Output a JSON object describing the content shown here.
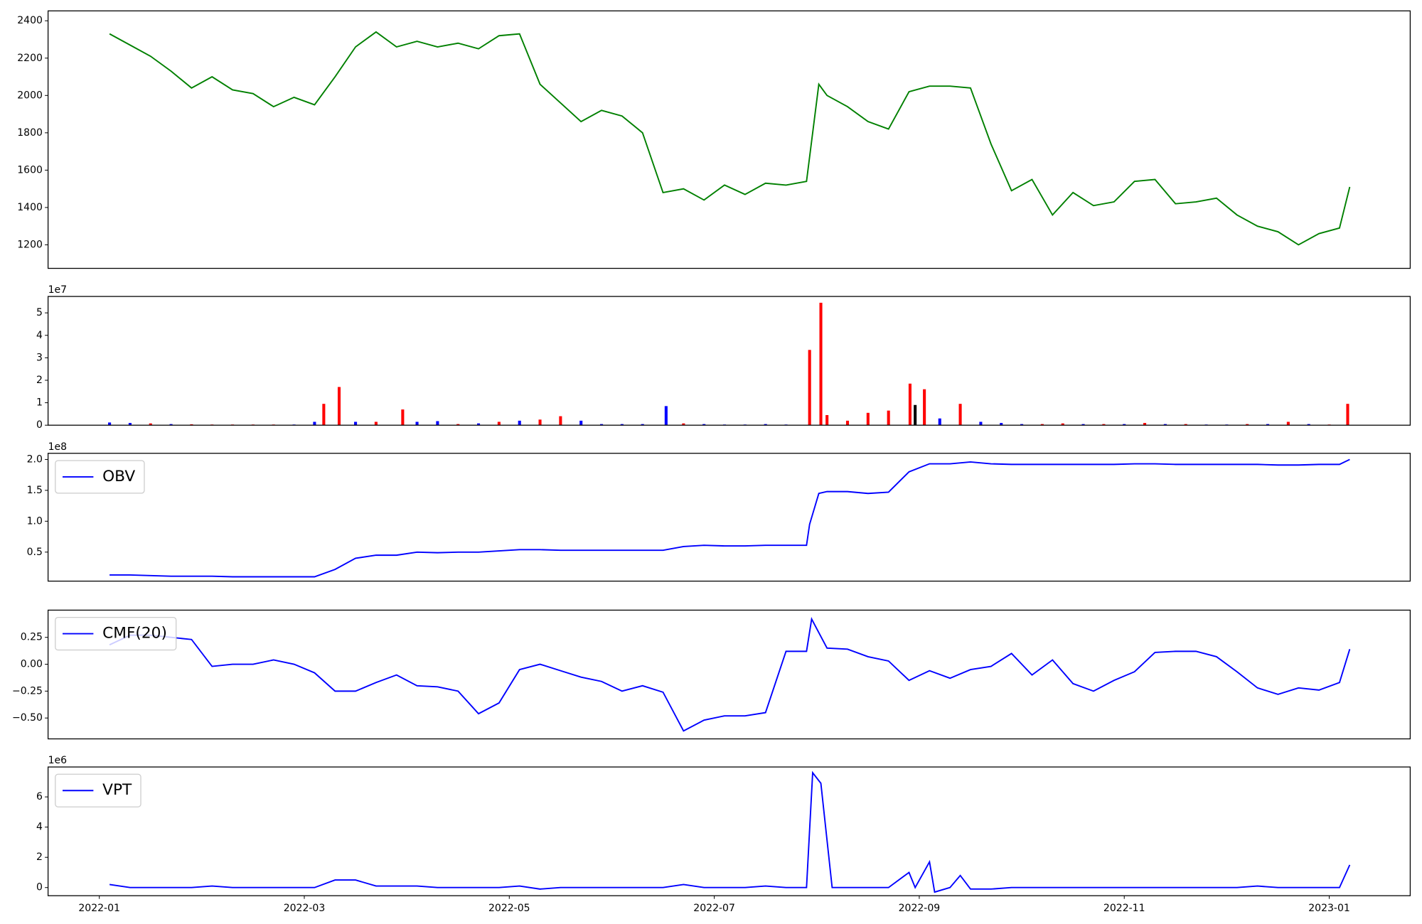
{
  "chart_data": [
    {
      "type": "line",
      "color": "green",
      "x": [
        0.1,
        0.3,
        0.5,
        0.7,
        0.9,
        1.1,
        1.3,
        1.5,
        1.7,
        1.9,
        2.1,
        2.3,
        2.5,
        2.7,
        2.9,
        3.1,
        3.3,
        3.5,
        3.7,
        3.9,
        4.1,
        4.3,
        4.5,
        4.7,
        4.9,
        5.1,
        5.3,
        5.5,
        5.7,
        5.9,
        6.1,
        6.3,
        6.5,
        6.7,
        6.9,
        7.02,
        7.1,
        7.3,
        7.5,
        7.7,
        7.9,
        8.1,
        8.3,
        8.5,
        8.7,
        8.9,
        9.1,
        9.3,
        9.5,
        9.7,
        9.9,
        10.1,
        10.3,
        10.5,
        10.7,
        10.9,
        11.1,
        11.3,
        11.5,
        11.7,
        11.9,
        12.1,
        12.2
      ],
      "values": [
        2330,
        2270,
        2210,
        2130,
        2040,
        2100,
        2030,
        2010,
        1940,
        1990,
        1950,
        2100,
        2260,
        2340,
        2260,
        2290,
        2260,
        2280,
        2250,
        2320,
        2330,
        2060,
        1960,
        1860,
        1920,
        1890,
        1800,
        1480,
        1500,
        1440,
        1520,
        1470,
        1530,
        1520,
        1540,
        2060,
        2000,
        1940,
        1860,
        1820,
        2020,
        2050,
        2050,
        2040,
        1740,
        1490,
        1550,
        1360,
        1480,
        1410,
        1430,
        1540,
        1550,
        1420,
        1430,
        1450,
        1360,
        1300,
        1270,
        1200,
        1260,
        1290,
        1510
      ],
      "xlim": [
        -0.5,
        12.79
      ],
      "ylim": [
        1074,
        2453
      ],
      "yticks": [
        1200,
        1400,
        1600,
        1800,
        2000,
        2200,
        2400
      ]
    },
    {
      "type": "bar",
      "offset_label": "1e7",
      "x": [
        0.1,
        0.3,
        0.5,
        0.7,
        0.9,
        1.1,
        1.3,
        1.5,
        1.7,
        1.9,
        2.1,
        2.19,
        2.34,
        2.5,
        2.7,
        2.96,
        3.1,
        3.3,
        3.5,
        3.7,
        3.9,
        4.1,
        4.3,
        4.5,
        4.7,
        4.9,
        5.1,
        5.3,
        5.53,
        5.7,
        5.9,
        6.1,
        6.3,
        6.5,
        6.7,
        6.93,
        7.04,
        7.1,
        7.3,
        7.5,
        7.7,
        7.91,
        7.96,
        8.05,
        8.2,
        8.4,
        8.6,
        8.8,
        9.0,
        9.2,
        9.4,
        9.6,
        9.8,
        10.0,
        10.2,
        10.4,
        10.6,
        10.8,
        11.0,
        11.2,
        11.4,
        11.6,
        11.8,
        12.0,
        12.18
      ],
      "values": [
        0.12,
        0.1,
        0.08,
        0.05,
        0.04,
        0.03,
        0.03,
        0.03,
        0.03,
        0.03,
        0.15,
        0.95,
        1.7,
        0.15,
        0.15,
        0.7,
        0.15,
        0.18,
        0.05,
        0.08,
        0.15,
        0.2,
        0.25,
        0.4,
        0.2,
        0.05,
        0.05,
        0.05,
        0.85,
        0.08,
        0.05,
        0.03,
        0.03,
        0.05,
        0.03,
        3.35,
        5.45,
        0.45,
        0.2,
        0.55,
        0.65,
        1.85,
        0.9,
        1.6,
        0.3,
        0.95,
        0.15,
        0.1,
        0.05,
        0.05,
        0.08,
        0.05,
        0.05,
        0.05,
        0.1,
        0.05,
        0.05,
        0.03,
        0.03,
        0.05,
        0.05,
        0.15,
        0.05,
        0.03,
        0.95
      ],
      "colors": [
        "blue",
        "blue",
        "red",
        "blue",
        "red",
        "red",
        "red",
        "red",
        "red",
        "blue",
        "blue",
        "red",
        "red",
        "blue",
        "red",
        "red",
        "blue",
        "blue",
        "red",
        "blue",
        "red",
        "blue",
        "red",
        "red",
        "blue",
        "blue",
        "blue",
        "blue",
        "blue",
        "red",
        "blue",
        "blue",
        "blue",
        "blue",
        "blue",
        "red",
        "red",
        "red",
        "red",
        "red",
        "red",
        "red",
        "black",
        "red",
        "blue",
        "red",
        "blue",
        "blue",
        "blue",
        "red",
        "red",
        "blue",
        "red",
        "blue",
        "red",
        "blue",
        "red",
        "blue",
        "blue",
        "red",
        "blue",
        "red",
        "blue",
        "red",
        "red"
      ],
      "xlim": [
        -0.5,
        12.79
      ],
      "ylim": [
        0,
        5.73
      ],
      "yticks": [
        0,
        1,
        2,
        3,
        4,
        5
      ]
    },
    {
      "type": "line",
      "offset_label": "1e8",
      "legend": "upper left",
      "x": [
        0.1,
        0.3,
        0.5,
        0.7,
        0.9,
        1.1,
        1.3,
        1.5,
        1.7,
        1.9,
        2.1,
        2.3,
        2.5,
        2.7,
        2.9,
        3.1,
        3.3,
        3.5,
        3.7,
        3.9,
        4.1,
        4.3,
        4.5,
        4.7,
        4.9,
        5.1,
        5.3,
        5.5,
        5.7,
        5.9,
        6.1,
        6.3,
        6.5,
        6.7,
        6.9,
        6.93,
        7.02,
        7.1,
        7.3,
        7.5,
        7.7,
        7.9,
        8.1,
        8.3,
        8.5,
        8.7,
        8.9,
        9.1,
        9.3,
        9.5,
        9.7,
        9.9,
        10.1,
        10.3,
        10.5,
        10.7,
        10.9,
        11.1,
        11.3,
        11.5,
        11.7,
        11.9,
        12.1,
        12.2
      ],
      "series": [
        {
          "name": "OBV",
          "color": "blue",
          "values": [
            0.13,
            0.13,
            0.12,
            0.11,
            0.11,
            0.11,
            0.1,
            0.1,
            0.1,
            0.1,
            0.1,
            0.22,
            0.4,
            0.45,
            0.45,
            0.5,
            0.49,
            0.5,
            0.5,
            0.52,
            0.54,
            0.54,
            0.53,
            0.53,
            0.53,
            0.53,
            0.53,
            0.53,
            0.59,
            0.61,
            0.6,
            0.6,
            0.61,
            0.61,
            0.61,
            0.95,
            1.45,
            1.48,
            1.48,
            1.45,
            1.47,
            1.8,
            1.93,
            1.93,
            1.96,
            1.93,
            1.92,
            1.92,
            1.92,
            1.92,
            1.92,
            1.92,
            1.93,
            1.93,
            1.92,
            1.92,
            1.92,
            1.92,
            1.92,
            1.91,
            1.91,
            1.92,
            1.92,
            2.0
          ]
        }
      ],
      "xlim": [
        -0.5,
        12.79
      ],
      "ylim": [
        0.03,
        2.1
      ],
      "yticks": [
        0.5,
        {
          "value": 1.0,
          "label": "1.0"
        },
        1.5,
        {
          "value": 2.0,
          "label": "2.0"
        }
      ]
    },
    {
      "type": "line",
      "legend": "upper left",
      "x": [
        0.1,
        0.3,
        0.5,
        0.7,
        0.9,
        1.1,
        1.3,
        1.5,
        1.7,
        1.9,
        2.1,
        2.3,
        2.5,
        2.7,
        2.9,
        3.1,
        3.3,
        3.5,
        3.7,
        3.9,
        4.1,
        4.3,
        4.5,
        4.7,
        4.9,
        5.1,
        5.3,
        5.5,
        5.7,
        5.9,
        6.1,
        6.3,
        6.5,
        6.7,
        6.9,
        6.95,
        7.1,
        7.3,
        7.5,
        7.7,
        7.9,
        8.1,
        8.3,
        8.5,
        8.7,
        8.9,
        9.1,
        9.3,
        9.5,
        9.7,
        9.9,
        10.1,
        10.3,
        10.5,
        10.7,
        10.9,
        11.1,
        11.3,
        11.5,
        11.7,
        11.9,
        12.1,
        12.2
      ],
      "series": [
        {
          "name": "CMF(20)",
          "color": "blue",
          "values": [
            0.18,
            0.27,
            0.27,
            0.25,
            0.23,
            -0.02,
            0.0,
            0.0,
            0.04,
            0.0,
            -0.08,
            -0.25,
            -0.25,
            -0.17,
            -0.1,
            -0.2,
            -0.21,
            -0.25,
            -0.46,
            -0.36,
            -0.05,
            0.0,
            -0.06,
            -0.12,
            -0.16,
            -0.25,
            -0.2,
            -0.26,
            -0.62,
            -0.52,
            -0.48,
            -0.48,
            -0.45,
            0.12,
            0.12,
            0.42,
            0.15,
            0.14,
            0.07,
            0.03,
            -0.15,
            -0.06,
            -0.13,
            -0.05,
            -0.02,
            0.1,
            -0.1,
            0.04,
            -0.18,
            -0.25,
            -0.15,
            -0.07,
            0.11,
            0.12,
            0.12,
            0.07,
            -0.07,
            -0.22,
            -0.28,
            -0.22,
            -0.24,
            -0.17,
            0.14
          ]
        }
      ],
      "xlim": [
        -0.5,
        12.79
      ],
      "ylim": [
        -0.694,
        0.503
      ],
      "yticks": [
        {
          "value": -0.5,
          "label": "−0.50"
        },
        {
          "value": -0.25,
          "label": "−0.25"
        },
        {
          "value": 0,
          "label": "0.00"
        },
        0.25
      ]
    },
    {
      "type": "line",
      "offset_label": "1e6",
      "legend": "upper left",
      "x": [
        0.1,
        0.3,
        0.5,
        0.7,
        0.9,
        1.1,
        1.3,
        1.5,
        1.7,
        1.9,
        2.1,
        2.3,
        2.5,
        2.7,
        2.9,
        3.1,
        3.3,
        3.5,
        3.7,
        3.9,
        4.1,
        4.3,
        4.5,
        4.7,
        4.9,
        5.1,
        5.3,
        5.5,
        5.7,
        5.9,
        6.1,
        6.3,
        6.5,
        6.7,
        6.9,
        6.96,
        7.04,
        7.15,
        7.3,
        7.5,
        7.7,
        7.9,
        7.96,
        8.1,
        8.15,
        8.3,
        8.4,
        8.5,
        8.7,
        8.9,
        9.1,
        9.3,
        9.5,
        9.7,
        9.9,
        10.1,
        10.3,
        10.5,
        10.7,
        10.9,
        11.1,
        11.3,
        11.5,
        11.7,
        11.9,
        12.1,
        12.2
      ],
      "series": [
        {
          "name": "VPT",
          "color": "blue",
          "values": [
            0.2,
            0,
            0,
            0,
            0,
            0.1,
            0,
            0,
            0,
            0,
            0,
            0.5,
            0.5,
            0.1,
            0.1,
            0.1,
            0,
            0,
            0,
            0,
            0.1,
            -0.1,
            0,
            0,
            0,
            0,
            0,
            0,
            0.2,
            0,
            0,
            0,
            0.1,
            0,
            0,
            7.6,
            6.9,
            0,
            0,
            0,
            0,
            1.0,
            0,
            1.7,
            -0.3,
            0,
            0.8,
            -0.1,
            -0.1,
            0,
            0,
            0,
            0,
            0,
            0,
            0,
            0,
            0,
            0,
            0,
            0,
            0.1,
            0,
            0,
            0,
            0,
            1.5
          ]
        }
      ],
      "xlim": [
        -0.5,
        12.79
      ],
      "ylim": [
        -0.54,
        7.98
      ],
      "yticks": [
        0,
        2,
        4,
        6
      ],
      "xticks": [
        {
          "value": 0,
          "label": "2022-01"
        },
        {
          "value": 2,
          "label": "2022-03"
        },
        {
          "value": 4,
          "label": "2022-05"
        },
        {
          "value": 6,
          "label": "2022-07"
        },
        {
          "value": 8,
          "label": "2022-09"
        },
        {
          "value": 10,
          "label": "2022-11"
        },
        {
          "value": 12,
          "label": "2023-01"
        }
      ]
    }
  ]
}
